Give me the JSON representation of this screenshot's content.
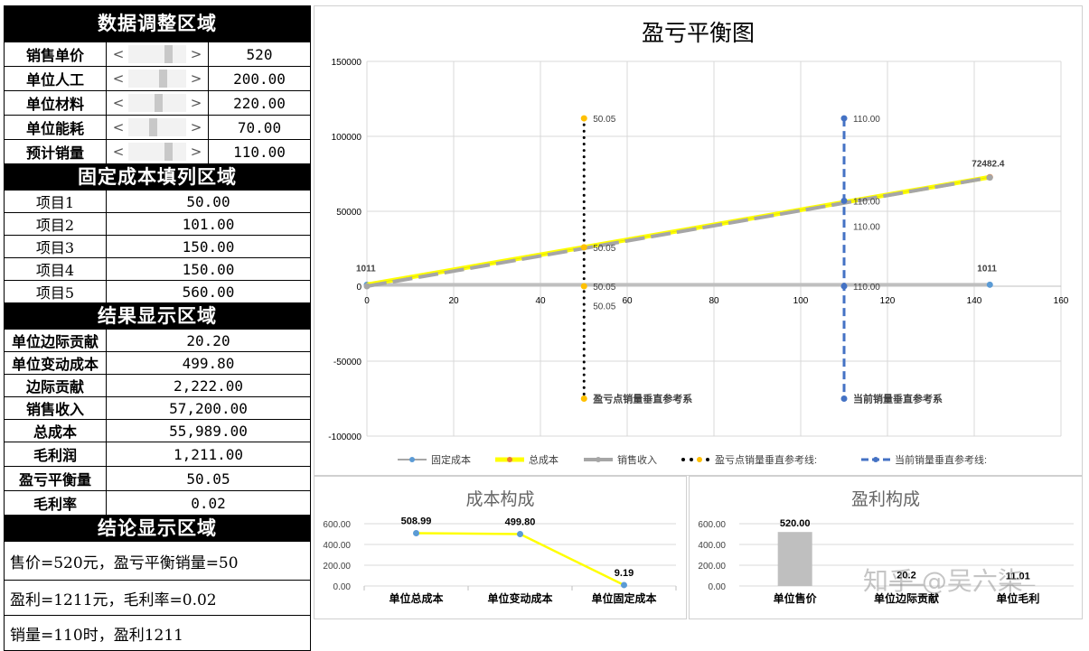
{
  "adjust_section": {
    "title": "数据调整区域",
    "rows": [
      {
        "label": "销售单价",
        "value": "520"
      },
      {
        "label": "单位人工",
        "value": "200.00"
      },
      {
        "label": "单位材料",
        "value": "220.00"
      },
      {
        "label": "单位能耗",
        "value": "70.00"
      },
      {
        "label": "预计销量",
        "value": "110.00"
      }
    ],
    "scroll_left_glyph": "<",
    "scroll_right_glyph": ">"
  },
  "fixed_cost_section": {
    "title": "固定成本填列区域",
    "rows": [
      {
        "label": "项目1",
        "value": "50.00"
      },
      {
        "label": "项目2",
        "value": "101.00"
      },
      {
        "label": "项目3",
        "value": "150.00"
      },
      {
        "label": "项目4",
        "value": "150.00"
      },
      {
        "label": "项目5",
        "value": "560.00"
      }
    ]
  },
  "result_section": {
    "title": "结果显示区域",
    "rows": [
      {
        "label": "单位边际贡献",
        "value": "20.20"
      },
      {
        "label": "单位变动成本",
        "value": "499.80"
      },
      {
        "label": "边际贡献",
        "value": "2,222.00"
      },
      {
        "label": "销售收入",
        "value": "57,200.00"
      },
      {
        "label": "总成本",
        "value": "55,989.00"
      },
      {
        "label": "毛利润",
        "value": "1,211.00"
      },
      {
        "label": "盈亏平衡量",
        "value": "50.05"
      },
      {
        "label": "毛利率",
        "value": "0.02"
      }
    ]
  },
  "conclusion_section": {
    "title": "结论显示区域",
    "lines": [
      "售价=520元，盈亏平衡销量=50",
      "盈利=1211元，毛利率=0.02",
      "销量=110时，盈利1211"
    ]
  },
  "watermark": "知乎 @吴六柒",
  "chart_data": [
    {
      "type": "line",
      "title": "盈亏平衡图",
      "xlim": [
        0,
        160
      ],
      "ylim": [
        -100000,
        150000
      ],
      "x_ticks": [
        "0",
        "20",
        "40",
        "60",
        "80",
        "100",
        "120",
        "140",
        "160"
      ],
      "y_ticks": [
        "150000",
        "100000",
        "50000",
        "0",
        "-50000",
        "-100000"
      ],
      "grid": true,
      "legend_position": "bottom",
      "series": [
        {
          "name": "固定成本",
          "color": "#5b9bd5",
          "x": [
            0,
            143.6
          ],
          "y": [
            1011,
            1011
          ],
          "labels": [
            "1011",
            "1011"
          ]
        },
        {
          "name": "总成本",
          "color": "#ffff00",
          "x": [
            0,
            143.6
          ],
          "y": [
            1011,
            72774
          ],
          "labels": [
            "",
            ""
          ]
        },
        {
          "name": "销售收入",
          "color": "#a6a6a6",
          "x": [
            0,
            143.6
          ],
          "y": [
            0,
            72482.4
          ],
          "labels": [
            "",
            "72482.4"
          ]
        },
        {
          "name": "盈亏点销量垂直参考线:",
          "color": "#000000",
          "x": [
            50.05,
            50.05,
            50.05,
            50.05
          ],
          "y": [
            112000,
            26000,
            0,
            -75000
          ],
          "labels": [
            "50.05",
            "50.05",
            "50.05",
            "盈亏点销量垂直参考系"
          ]
        },
        {
          "name": "当前销量垂直参考线:",
          "color": "#4472c4",
          "x": [
            110,
            110,
            110,
            110
          ],
          "y": [
            112000,
            57000,
            0,
            -75000
          ],
          "labels": [
            "110.00",
            "110.00",
            "110.00",
            "当前销量垂直参考系"
          ]
        }
      ],
      "extra_labels": [
        {
          "text": "50.05",
          "x": 50.05,
          "y": -13000
        },
        {
          "text": "110.00",
          "x": 110,
          "y": 40000
        }
      ]
    },
    {
      "type": "line",
      "title": "成本构成",
      "categories": [
        "单位总成本",
        "单位变动成本",
        "单位固定成本"
      ],
      "values": [
        508.99,
        499.8,
        9.19
      ],
      "value_labels": [
        "508.99",
        "499.80",
        "9.19"
      ],
      "ylim": [
        0,
        600
      ],
      "y_ticks": [
        "600.00",
        "400.00",
        "200.00",
        "0.00"
      ],
      "line_color": "#ffff00",
      "marker_color": "#5b9bd5"
    },
    {
      "type": "bar",
      "title": "盈利构成",
      "categories": [
        "单位售价",
        "单位边际贡献",
        "单位毛利"
      ],
      "values": [
        520.0,
        20.2,
        11.01
      ],
      "value_labels": [
        "520.00",
        "20.2",
        "11.01"
      ],
      "ylim": [
        0,
        600
      ],
      "y_ticks": [
        "600.00",
        "400.00",
        "200.00",
        "0.00"
      ],
      "bar_color": "#bfbfbf"
    }
  ]
}
